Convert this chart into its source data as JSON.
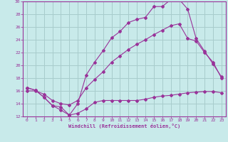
{
  "xlabel": "Windchill (Refroidissement éolien,°C)",
  "bg_color": "#c8eaea",
  "grid_color": "#a8cccc",
  "line_color": "#993399",
  "xlim": [
    -0.5,
    23.5
  ],
  "ylim": [
    12,
    30
  ],
  "yticks": [
    12,
    14,
    16,
    18,
    20,
    22,
    24,
    26,
    28,
    30
  ],
  "xticks": [
    0,
    1,
    2,
    3,
    4,
    5,
    6,
    7,
    8,
    9,
    10,
    11,
    12,
    13,
    14,
    15,
    16,
    17,
    18,
    19,
    20,
    21,
    22,
    23
  ],
  "line1_x": [
    0,
    1,
    2,
    3,
    4,
    5,
    6,
    7,
    8,
    9,
    10,
    11,
    12,
    13,
    14,
    15,
    16,
    17,
    18,
    19,
    20,
    21,
    22,
    23
  ],
  "line1_y": [
    16.5,
    16.1,
    15.0,
    13.7,
    13.0,
    12.2,
    12.5,
    13.2,
    14.2,
    14.5,
    14.5,
    14.5,
    14.5,
    14.5,
    14.7,
    15.0,
    15.2,
    15.3,
    15.5,
    15.7,
    15.8,
    15.9,
    15.9,
    15.7
  ],
  "line2_x": [
    0,
    1,
    2,
    3,
    4,
    5,
    6,
    7,
    8,
    9,
    10,
    11,
    12,
    13,
    14,
    15,
    16,
    17,
    18,
    19,
    20,
    21,
    22,
    23
  ],
  "line2_y": [
    16.5,
    16.1,
    15.0,
    13.7,
    13.5,
    12.2,
    14.0,
    18.5,
    20.5,
    22.3,
    24.3,
    25.3,
    26.7,
    27.2,
    27.5,
    29.2,
    29.2,
    30.3,
    30.3,
    28.8,
    24.2,
    22.2,
    20.2,
    18.2
  ],
  "line3_x": [
    0,
    1,
    2,
    3,
    4,
    5,
    6,
    7,
    8,
    9,
    10,
    11,
    12,
    13,
    14,
    15,
    16,
    17,
    18,
    19,
    20,
    21,
    22,
    23
  ],
  "line3_y": [
    16.0,
    16.0,
    15.5,
    14.5,
    14.0,
    13.8,
    14.5,
    16.5,
    17.8,
    19.0,
    20.5,
    21.5,
    22.5,
    23.3,
    24.0,
    24.8,
    25.5,
    26.2,
    26.5,
    24.2,
    23.8,
    22.0,
    20.5,
    18.0
  ]
}
